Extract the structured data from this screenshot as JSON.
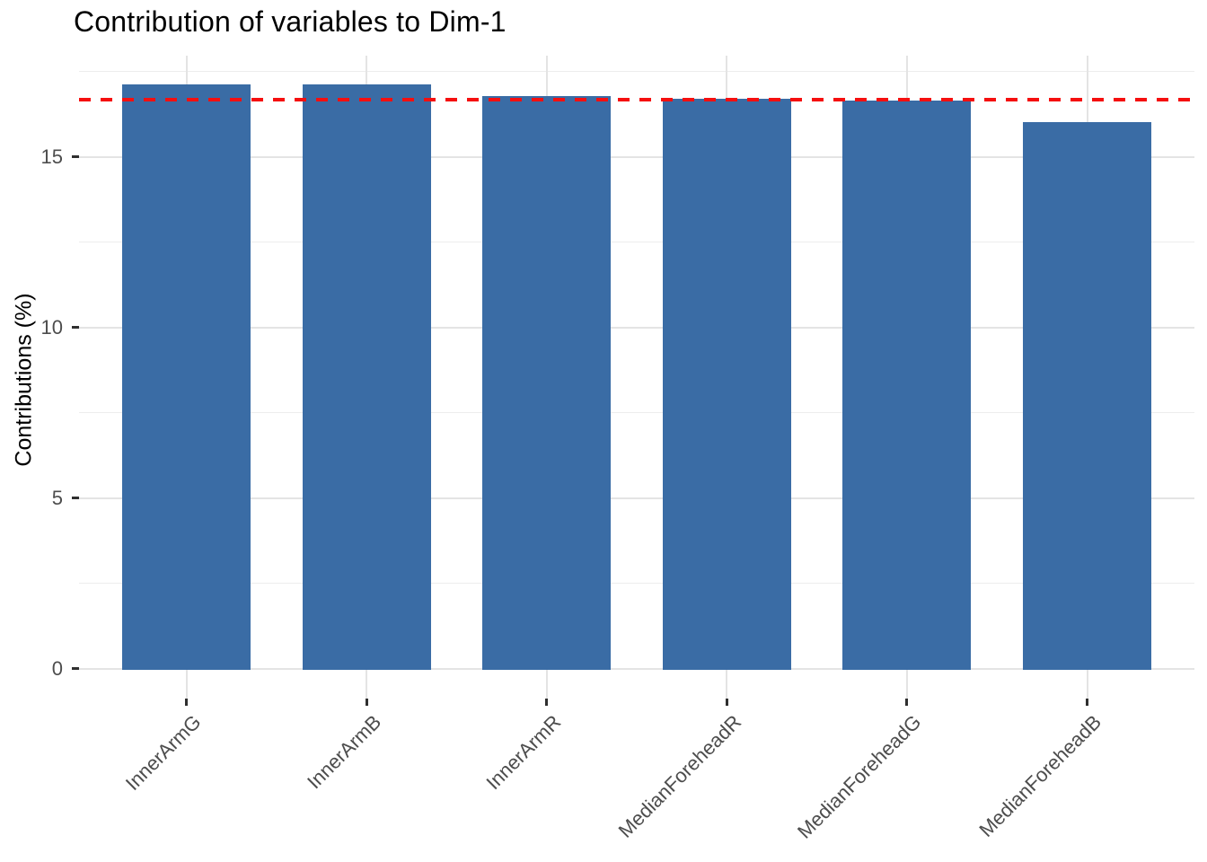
{
  "chart_data": {
    "type": "bar",
    "title": "Contribution of variables to Dim-1",
    "ylabel": "Contributions (%)",
    "xlabel": "",
    "categories": [
      "InnerArmG",
      "InnerArmB",
      "InnerArmR",
      "MedianForeheadR",
      "MedianForeheadG",
      "MedianForeheadB"
    ],
    "values": [
      17.13,
      17.12,
      16.78,
      16.7,
      16.64,
      16.01
    ],
    "y_ticks": [
      0,
      5,
      10,
      15
    ],
    "y_minor_gridlines": [
      2.5,
      7.5,
      12.5,
      17.5
    ],
    "ylim": [
      -0.9,
      18.0
    ],
    "reference_line": {
      "value": 16.67,
      "style": "dashed",
      "color": "#f50f0f"
    },
    "bar_color": "#3a6ca5",
    "grid": true,
    "legend_position": "none",
    "x_tick_rotation_deg": 45
  },
  "colors": {
    "background": "#ffffff",
    "grid_major": "#e4e4e4",
    "grid_minor": "#ededed",
    "axis_text": "#4d4d4d",
    "tick_mark": "#2f2f2f",
    "title_text": "#000000"
  }
}
